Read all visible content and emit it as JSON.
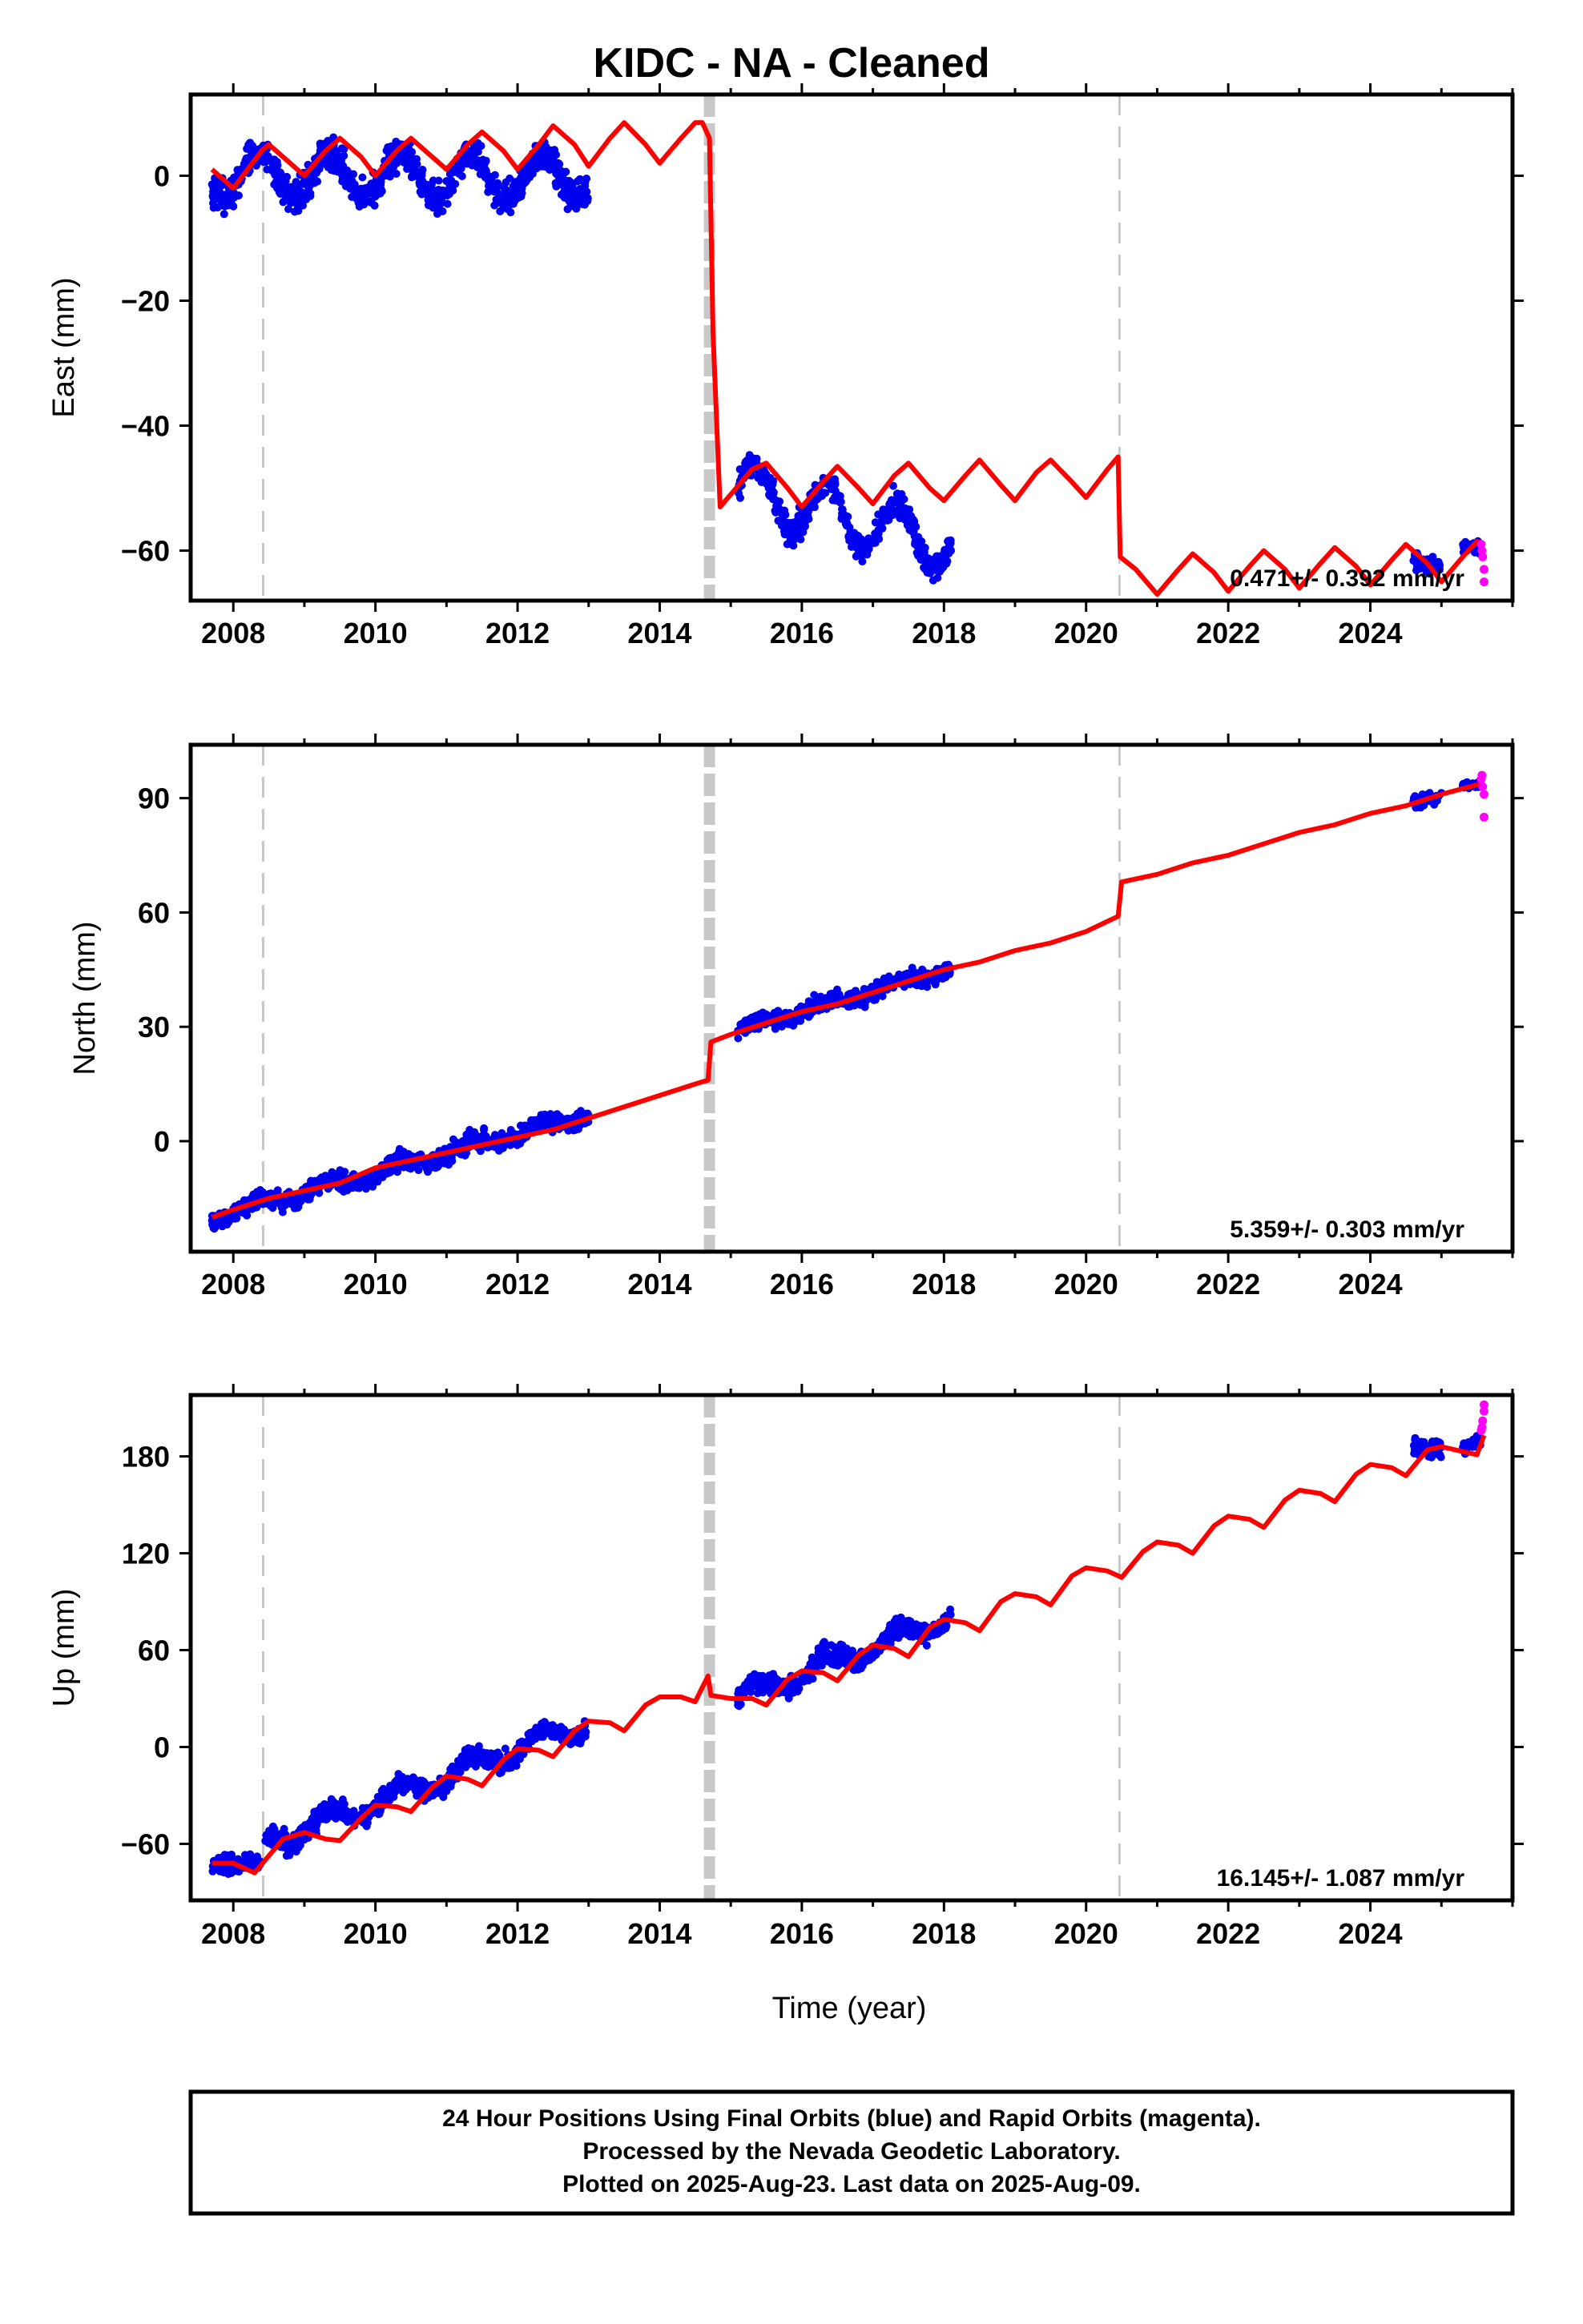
{
  "title": "KIDC  - NA - Cleaned",
  "xlabel": "Time (year)",
  "caption": [
    "24 Hour Positions Using Final Orbits (blue) and Rapid Orbits (magenta).",
    "Processed by the Nevada Geodetic Laboratory.",
    "Plotted on 2025-Aug-23. Last data on 2025-Aug-09."
  ],
  "colors": {
    "final": "#0000ee",
    "rapid": "#ff00ff",
    "model": "#ff0000",
    "event": "#c8c8c8"
  },
  "chart_data": [
    {
      "type": "scatter",
      "panel": "east",
      "ylabel": "East (mm)",
      "rate": "0.471+/- 0.392 mm/yr",
      "xlim": [
        2007.4,
        2026.0
      ],
      "ylim": [
        -68,
        13
      ],
      "xticks": [
        2008,
        2010,
        2012,
        2014,
        2016,
        2018,
        2020,
        2022,
        2024
      ],
      "yticks": [
        0,
        -20,
        -40,
        -60
      ],
      "events": [
        2008.42,
        2014.7,
        2020.47
      ],
      "model": [
        [
          2007.7,
          1
        ],
        [
          2008.0,
          -2
        ],
        [
          2008.2,
          1
        ],
        [
          2008.4,
          4
        ],
        [
          2008.5,
          5
        ],
        [
          2008.8,
          2
        ],
        [
          2009.0,
          0
        ],
        [
          2009.3,
          4
        ],
        [
          2009.5,
          6
        ],
        [
          2009.8,
          3
        ],
        [
          2010.0,
          0
        ],
        [
          2010.3,
          4
        ],
        [
          2010.5,
          6
        ],
        [
          2010.8,
          3
        ],
        [
          2011.0,
          1
        ],
        [
          2011.3,
          5
        ],
        [
          2011.5,
          7
        ],
        [
          2011.8,
          4
        ],
        [
          2012.0,
          1
        ],
        [
          2012.3,
          5
        ],
        [
          2012.5,
          8
        ],
        [
          2012.8,
          5
        ],
        [
          2013.0,
          1.5
        ],
        [
          2013.3,
          6
        ],
        [
          2013.5,
          8.5
        ],
        [
          2013.8,
          5
        ],
        [
          2014.0,
          2
        ],
        [
          2014.3,
          6
        ],
        [
          2014.5,
          8.5
        ],
        [
          2014.6,
          8.5
        ],
        [
          2014.7,
          6
        ],
        [
          2014.75,
          -25
        ],
        [
          2014.85,
          -53
        ],
        [
          2015.0,
          -51
        ],
        [
          2015.3,
          -47
        ],
        [
          2015.5,
          -46
        ],
        [
          2015.8,
          -50
        ],
        [
          2016.0,
          -53
        ],
        [
          2016.3,
          -49
        ],
        [
          2016.5,
          -46.5
        ],
        [
          2016.8,
          -50
        ],
        [
          2017.0,
          -52.5
        ],
        [
          2017.3,
          -48
        ],
        [
          2017.5,
          -46
        ],
        [
          2017.8,
          -50
        ],
        [
          2018.0,
          -52
        ],
        [
          2018.3,
          -48
        ],
        [
          2018.5,
          -45.5
        ],
        [
          2018.8,
          -49.5
        ],
        [
          2019.0,
          -52
        ],
        [
          2019.3,
          -47.5
        ],
        [
          2019.5,
          -45.5
        ],
        [
          2019.8,
          -49
        ],
        [
          2020.0,
          -51.5
        ],
        [
          2020.3,
          -47
        ],
        [
          2020.45,
          -45
        ],
        [
          2020.48,
          -61
        ],
        [
          2020.7,
          -63
        ],
        [
          2021.0,
          -67
        ],
        [
          2021.3,
          -63
        ],
        [
          2021.5,
          -60.5
        ],
        [
          2021.8,
          -63.5
        ],
        [
          2022.0,
          -66.5
        ],
        [
          2022.3,
          -62.5
        ],
        [
          2022.5,
          -60
        ],
        [
          2022.8,
          -63
        ],
        [
          2023.0,
          -66
        ],
        [
          2023.3,
          -62
        ],
        [
          2023.5,
          -59.5
        ],
        [
          2023.8,
          -62.5
        ],
        [
          2024.0,
          -65.5
        ],
        [
          2024.3,
          -61.5
        ],
        [
          2024.5,
          -59
        ],
        [
          2024.8,
          -62
        ],
        [
          2025.0,
          -65
        ],
        [
          2025.3,
          -61
        ],
        [
          2025.5,
          -58.5
        ],
        [
          2025.6,
          -59
        ]
      ],
      "final_segments": [
        {
          "x0": 2007.7,
          "x1": 2013.0,
          "offset": 0.0,
          "amp": 3.5,
          "noise": 2.5,
          "n": 900
        },
        {
          "x0": 2015.1,
          "x1": 2018.1,
          "offset": -50.0,
          "amp": 4.5,
          "noise": 2.0,
          "n": 520,
          "trend": -3.0
        },
        {
          "x0": 2024.6,
          "x1": 2025.0,
          "offset": -61.5,
          "amp": 1.0,
          "noise": 1.5,
          "n": 60
        },
        {
          "x0": 2025.3,
          "x1": 2025.55,
          "offset": -60.0,
          "amp": 0.5,
          "noise": 1.0,
          "n": 35
        }
      ],
      "rapid": [
        [
          2025.56,
          -59
        ],
        [
          2025.58,
          -61
        ],
        [
          2025.6,
          -63
        ],
        [
          2025.6,
          -65
        ],
        [
          2025.57,
          -60
        ]
      ]
    },
    {
      "type": "scatter",
      "panel": "north",
      "ylabel": "North (mm)",
      "rate": "5.359+/- 0.303 mm/yr",
      "xlim": [
        2007.4,
        2026.0
      ],
      "ylim": [
        -29,
        104
      ],
      "xticks": [
        2008,
        2010,
        2012,
        2014,
        2016,
        2018,
        2020,
        2022,
        2024
      ],
      "yticks": [
        90,
        60,
        30,
        0
      ],
      "events": [
        2008.42,
        2014.7,
        2020.47
      ],
      "model": [
        [
          2007.7,
          -20
        ],
        [
          2008.0,
          -18
        ],
        [
          2008.5,
          -15
        ],
        [
          2009.0,
          -13
        ],
        [
          2009.5,
          -11
        ],
        [
          2010.0,
          -7
        ],
        [
          2010.5,
          -5
        ],
        [
          2011.0,
          -3
        ],
        [
          2011.5,
          -1
        ],
        [
          2012.0,
          1
        ],
        [
          2012.5,
          3
        ],
        [
          2013.0,
          6
        ],
        [
          2013.5,
          9
        ],
        [
          2014.0,
          12
        ],
        [
          2014.5,
          15
        ],
        [
          2014.68,
          16
        ],
        [
          2014.72,
          26
        ],
        [
          2015.0,
          28
        ],
        [
          2015.5,
          31
        ],
        [
          2016.0,
          34
        ],
        [
          2016.5,
          36
        ],
        [
          2017.0,
          39
        ],
        [
          2017.5,
          42
        ],
        [
          2018.0,
          45
        ],
        [
          2018.5,
          47
        ],
        [
          2019.0,
          50
        ],
        [
          2019.5,
          52
        ],
        [
          2020.0,
          55
        ],
        [
          2020.45,
          59
        ],
        [
          2020.5,
          68
        ],
        [
          2021.0,
          70
        ],
        [
          2021.5,
          73
        ],
        [
          2022.0,
          75
        ],
        [
          2022.5,
          78
        ],
        [
          2023.0,
          81
        ],
        [
          2023.5,
          83
        ],
        [
          2024.0,
          86
        ],
        [
          2024.5,
          88
        ],
        [
          2025.0,
          91
        ],
        [
          2025.6,
          94
        ]
      ],
      "final_segments": [
        {
          "x0": 2007.7,
          "x1": 2013.0,
          "offset": -20.0,
          "slope": 5.1,
          "amp": 1.2,
          "noise": 2.3,
          "n": 900
        },
        {
          "x0": 2015.1,
          "x1": 2018.1,
          "offset": 29.0,
          "slope": 5.5,
          "amp": 1.0,
          "noise": 2.0,
          "n": 520
        },
        {
          "x0": 2024.6,
          "x1": 2025.0,
          "offset": 89.0,
          "slope": 4.0,
          "amp": 0.5,
          "noise": 1.8,
          "n": 60
        },
        {
          "x0": 2025.3,
          "x1": 2025.55,
          "offset": 93.0,
          "slope": 2.0,
          "amp": 0.3,
          "noise": 1.0,
          "n": 35
        }
      ],
      "rapid": [
        [
          2025.56,
          95
        ],
        [
          2025.58,
          93
        ],
        [
          2025.6,
          91
        ],
        [
          2025.6,
          85
        ],
        [
          2025.57,
          96
        ]
      ]
    },
    {
      "type": "scatter",
      "panel": "up",
      "ylabel": "Up (mm)",
      "rate": "16.145+/- 1.087 mm/yr",
      "xlim": [
        2007.4,
        2026.0
      ],
      "ylim": [
        -95,
        218
      ],
      "xticks": [
        2008,
        2010,
        2012,
        2014,
        2016,
        2018,
        2020,
        2022,
        2024
      ],
      "yticks": [
        180,
        120,
        60,
        0,
        -60
      ],
      "events": [
        2008.42,
        2014.7,
        2020.47
      ],
      "model": [
        [
          2007.7,
          -72
        ],
        [
          2008.0,
          -72
        ],
        [
          2008.3,
          -78
        ],
        [
          2008.45,
          -70
        ],
        [
          2008.7,
          -57
        ],
        [
          2009.0,
          -53
        ],
        [
          2009.3,
          -57
        ],
        [
          2009.5,
          -58
        ],
        [
          2009.8,
          -44
        ],
        [
          2010.0,
          -36
        ],
        [
          2010.3,
          -37
        ],
        [
          2010.5,
          -40
        ],
        [
          2010.8,
          -25
        ],
        [
          2011.0,
          -18
        ],
        [
          2011.3,
          -20
        ],
        [
          2011.5,
          -24
        ],
        [
          2011.8,
          -8
        ],
        [
          2012.0,
          -1
        ],
        [
          2012.3,
          -2
        ],
        [
          2012.5,
          -6
        ],
        [
          2012.8,
          10
        ],
        [
          2013.0,
          16
        ],
        [
          2013.3,
          15
        ],
        [
          2013.5,
          10
        ],
        [
          2013.8,
          26
        ],
        [
          2014.0,
          31
        ],
        [
          2014.3,
          31
        ],
        [
          2014.5,
          28
        ],
        [
          2014.68,
          44
        ],
        [
          2014.72,
          32
        ],
        [
          2015.0,
          30
        ],
        [
          2015.3,
          30
        ],
        [
          2015.5,
          26
        ],
        [
          2015.8,
          42
        ],
        [
          2016.0,
          47
        ],
        [
          2016.3,
          46
        ],
        [
          2016.5,
          41
        ],
        [
          2016.8,
          57
        ],
        [
          2017.0,
          63
        ],
        [
          2017.3,
          61
        ],
        [
          2017.5,
          56
        ],
        [
          2017.8,
          74
        ],
        [
          2018.0,
          79
        ],
        [
          2018.3,
          77
        ],
        [
          2018.5,
          72
        ],
        [
          2018.8,
          90
        ],
        [
          2019.0,
          95
        ],
        [
          2019.3,
          93
        ],
        [
          2019.5,
          88
        ],
        [
          2019.8,
          106
        ],
        [
          2020.0,
          111
        ],
        [
          2020.3,
          109
        ],
        [
          2020.5,
          105
        ],
        [
          2020.8,
          121
        ],
        [
          2021.0,
          127
        ],
        [
          2021.3,
          125
        ],
        [
          2021.5,
          120
        ],
        [
          2021.8,
          137
        ],
        [
          2022.0,
          143
        ],
        [
          2022.3,
          141
        ],
        [
          2022.5,
          136
        ],
        [
          2022.8,
          153
        ],
        [
          2023.0,
          159
        ],
        [
          2023.3,
          157
        ],
        [
          2023.5,
          152
        ],
        [
          2023.8,
          169
        ],
        [
          2024.0,
          175
        ],
        [
          2024.3,
          173
        ],
        [
          2024.5,
          168
        ],
        [
          2024.8,
          184
        ],
        [
          2025.0,
          186
        ],
        [
          2025.3,
          183
        ],
        [
          2025.5,
          181
        ],
        [
          2025.6,
          193
        ]
      ],
      "final_segments": [
        {
          "x0": 2007.7,
          "x1": 2008.38,
          "offset": -72.0,
          "slope": 0.0,
          "amp": 1.0,
          "noise": 5.0,
          "n": 140
        },
        {
          "x0": 2008.45,
          "x1": 2013.0,
          "offset": -60.0,
          "slope": 16.5,
          "amp": 6.0,
          "noise": 6.0,
          "n": 780
        },
        {
          "x0": 2015.1,
          "x1": 2018.1,
          "offset": 30.0,
          "slope": 17.0,
          "amp": 6.0,
          "noise": 6.0,
          "n": 520
        },
        {
          "x0": 2024.6,
          "x1": 2025.0,
          "offset": 186.0,
          "slope": 0.0,
          "amp": 1.0,
          "noise": 6.0,
          "n": 60
        },
        {
          "x0": 2025.3,
          "x1": 2025.55,
          "offset": 186.0,
          "slope": 10.0,
          "amp": 0.5,
          "noise": 4.0,
          "n": 35
        }
      ],
      "rapid": [
        [
          2025.56,
          196
        ],
        [
          2025.58,
          202
        ],
        [
          2025.6,
          208
        ],
        [
          2025.6,
          212
        ],
        [
          2025.57,
          198
        ]
      ]
    }
  ]
}
